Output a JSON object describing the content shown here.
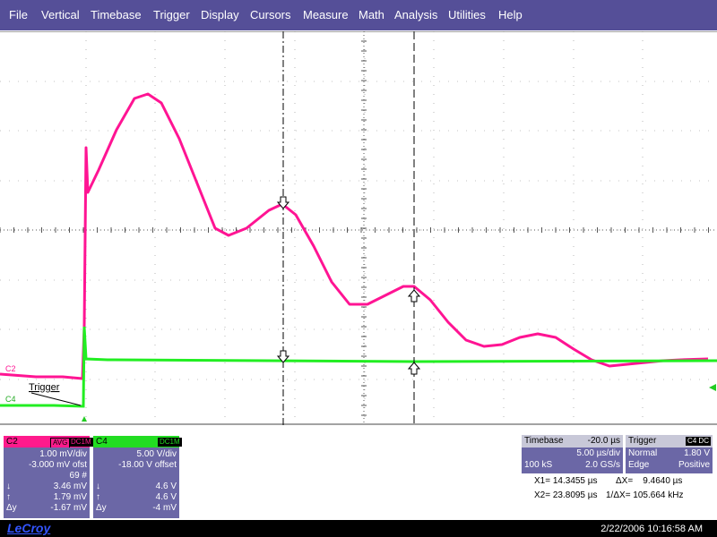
{
  "menu": [
    "File",
    "Vertical",
    "Timebase",
    "Trigger",
    "Display",
    "Cursors",
    "Measure",
    "Math",
    "Analysis",
    "Utilities",
    "Help"
  ],
  "colors": {
    "menubar": "#554f98",
    "c2_trace": "#ff1493",
    "c4_trace": "#22ee22",
    "panel": "#6b67a6"
  },
  "grid": {
    "trace_labels": {
      "c2": "C2",
      "c4": "C4",
      "trigger": "Trigger"
    },
    "cursor_markers": [
      "down-arrow-icon",
      "up-arrow-icon"
    ]
  },
  "c2_panel": {
    "name": "C2",
    "badges": [
      "AVG",
      "DC1M"
    ],
    "vdiv": "1.00 mV/div",
    "offset": "-3.000 mV ofst",
    "count": "69 #",
    "c1_sym": "↓",
    "c1_val": "3.46 mV",
    "c2_sym": "↑",
    "c2_val": "1.79 mV",
    "dy_sym": "Δy",
    "dy_val": "-1.67 mV"
  },
  "c4_panel": {
    "name": "C4",
    "badges": [
      "DC1M"
    ],
    "vdiv": "5.00 V/div",
    "offset": "-18.00 V offset",
    "c1_sym": "↓",
    "c1_val": "4.6 V",
    "c2_sym": "↑",
    "c2_val": "4.6 V",
    "dy_sym": "Δy",
    "dy_val": "-4 mV"
  },
  "timebase": {
    "title": "Timebase",
    "delay": "-20.0 µs",
    "tdiv": "5.00 µs/div",
    "samples": "100 kS",
    "rate": "2.0 GS/s"
  },
  "trigger": {
    "title": "Trigger",
    "badge": "C4 DC",
    "mode": "Normal",
    "level": "1.80 V",
    "type": "Edge",
    "slope": "Positive"
  },
  "cursors": {
    "x1": "X1= 14.3455 µs",
    "dx": "ΔX=    9.4640 µs",
    "x2": "X2= 23.8095 µs",
    "inv_dx": "1/ΔX= 105.664 kHz"
  },
  "bottom": {
    "brand": "LeCroy",
    "datetime": "2/22/2006 10:16:58 AM"
  }
}
